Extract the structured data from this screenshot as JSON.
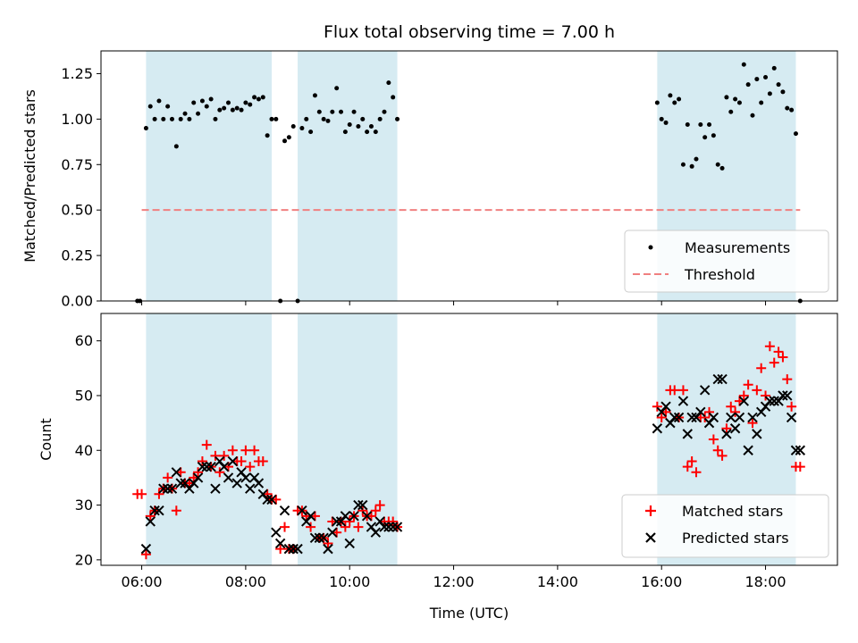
{
  "chart_data": [
    {
      "type": "scatter",
      "title": "Flux total observing time = 7.00 h",
      "xlabel": "",
      "ylabel": "Matched/Predicted stars",
      "xlim": [
        "05:13",
        "19:23"
      ],
      "ylim": [
        0,
        1.375
      ],
      "y_ticks": [
        0.0,
        0.25,
        0.5,
        0.75,
        1.0,
        1.25
      ],
      "y_tick_labels": [
        "0.00",
        "0.25",
        "0.50",
        "0.75",
        "1.00",
        "1.25"
      ],
      "x_ticks": [
        "06:00",
        "08:00",
        "10:00",
        "12:00",
        "14:00",
        "16:00",
        "18:00"
      ],
      "show_x_tick_labels": false,
      "grid": false,
      "legend_position": "lower-right",
      "observing_windows": [
        [
          "06:05",
          "08:30"
        ],
        [
          "09:00",
          "10:55"
        ],
        [
          "15:55",
          "18:35"
        ]
      ],
      "threshold": {
        "name": "Threshold",
        "value": 0.5,
        "x_range": [
          "06:00",
          "18:40"
        ],
        "color": "#f08080",
        "style": "dashed"
      },
      "series": [
        {
          "name": "Measurements",
          "marker": "dot",
          "color": "#000000",
          "x": [
            "05:55",
            "05:58",
            "06:05",
            "06:10",
            "06:15",
            "06:20",
            "06:25",
            "06:30",
            "06:35",
            "06:40",
            "06:45",
            "06:50",
            "06:55",
            "07:00",
            "07:05",
            "07:10",
            "07:15",
            "07:20",
            "07:25",
            "07:30",
            "07:35",
            "07:40",
            "07:45",
            "07:50",
            "07:55",
            "08:00",
            "08:05",
            "08:10",
            "08:15",
            "08:20",
            "08:25",
            "08:30",
            "08:35",
            "08:40",
            "08:45",
            "08:50",
            "08:55",
            "09:00",
            "09:05",
            "09:10",
            "09:15",
            "09:20",
            "09:25",
            "09:30",
            "09:35",
            "09:40",
            "09:45",
            "09:50",
            "09:55",
            "10:00",
            "10:05",
            "10:10",
            "10:15",
            "10:20",
            "10:25",
            "10:30",
            "10:35",
            "10:40",
            "10:45",
            "10:50",
            "10:55",
            "15:55",
            "16:00",
            "16:05",
            "16:10",
            "16:15",
            "16:20",
            "16:25",
            "16:30",
            "16:35",
            "16:40",
            "16:45",
            "16:50",
            "16:55",
            "17:00",
            "17:05",
            "17:10",
            "17:15",
            "17:20",
            "17:25",
            "17:30",
            "17:35",
            "17:40",
            "17:45",
            "17:50",
            "17:55",
            "18:00",
            "18:05",
            "18:10",
            "18:15",
            "18:20",
            "18:25",
            "18:30",
            "18:35",
            "18:40"
          ],
          "y": [
            0.0,
            0.0,
            0.95,
            1.07,
            1.0,
            1.1,
            1.0,
            1.07,
            1.0,
            0.85,
            1.0,
            1.03,
            1.0,
            1.09,
            1.03,
            1.1,
            1.07,
            1.11,
            1.0,
            1.05,
            1.06,
            1.09,
            1.05,
            1.06,
            1.05,
            1.09,
            1.08,
            1.12,
            1.11,
            1.12,
            0.91,
            1.0,
            1.0,
            0.0,
            0.88,
            0.9,
            0.96,
            0.0,
            0.95,
            1.0,
            0.93,
            1.13,
            1.04,
            1.0,
            0.99,
            1.04,
            1.17,
            1.04,
            0.93,
            0.97,
            1.04,
            0.96,
            1.0,
            0.93,
            0.96,
            0.93,
            1.0,
            1.04,
            1.2,
            1.12,
            1.0,
            1.09,
            1.0,
            0.98,
            1.13,
            1.09,
            1.11,
            0.75,
            0.97,
            0.74,
            0.78,
            0.97,
            0.9,
            0.97,
            0.91,
            0.75,
            0.73,
            1.12,
            1.04,
            1.11,
            1.09,
            1.3,
            1.19,
            1.02,
            1.22,
            1.09,
            1.23,
            1.14,
            1.28,
            1.19,
            1.15,
            1.06,
            1.05,
            0.92,
            0.0
          ]
        }
      ]
    },
    {
      "type": "scatter",
      "title": "",
      "xlabel": "Time (UTC)",
      "ylabel": "Count",
      "xlim": [
        "05:13",
        "19:23"
      ],
      "ylim": [
        19,
        65
      ],
      "y_ticks": [
        20,
        30,
        40,
        50,
        60
      ],
      "y_tick_labels": [
        "20",
        "30",
        "40",
        "50",
        "60"
      ],
      "x_ticks": [
        "06:00",
        "08:00",
        "10:00",
        "12:00",
        "14:00",
        "16:00",
        "18:00"
      ],
      "x_tick_labels": [
        "06:00",
        "08:00",
        "10:00",
        "12:00",
        "14:00",
        "16:00",
        "18:00"
      ],
      "show_x_tick_labels": true,
      "grid": false,
      "legend_position": "lower-right",
      "observing_windows": [
        [
          "06:05",
          "08:30"
        ],
        [
          "09:00",
          "10:55"
        ],
        [
          "15:55",
          "18:35"
        ]
      ],
      "series": [
        {
          "name": "Matched stars",
          "marker": "plus",
          "color": "#ff0000",
          "x": [
            "05:55",
            "06:00",
            "06:05",
            "06:10",
            "06:15",
            "06:20",
            "06:25",
            "06:30",
            "06:35",
            "06:40",
            "06:45",
            "06:50",
            "06:55",
            "07:00",
            "07:05",
            "07:10",
            "07:15",
            "07:20",
            "07:25",
            "07:30",
            "07:35",
            "07:40",
            "07:45",
            "07:50",
            "07:55",
            "08:00",
            "08:05",
            "08:10",
            "08:15",
            "08:20",
            "08:25",
            "08:30",
            "08:35",
            "08:40",
            "08:45",
            "08:50",
            "08:55",
            "09:00",
            "09:05",
            "09:10",
            "09:15",
            "09:20",
            "09:25",
            "09:30",
            "09:35",
            "09:40",
            "09:45",
            "09:50",
            "09:55",
            "10:00",
            "10:05",
            "10:10",
            "10:15",
            "10:20",
            "10:25",
            "10:30",
            "10:35",
            "10:40",
            "10:45",
            "10:50",
            "10:55",
            "15:55",
            "16:00",
            "16:05",
            "16:10",
            "16:15",
            "16:20",
            "16:25",
            "16:30",
            "16:35",
            "16:40",
            "16:45",
            "16:50",
            "16:55",
            "17:00",
            "17:05",
            "17:10",
            "17:15",
            "17:20",
            "17:25",
            "17:30",
            "17:35",
            "17:40",
            "17:45",
            "17:50",
            "17:55",
            "18:00",
            "18:05",
            "18:10",
            "18:15",
            "18:20",
            "18:25",
            "18:30",
            "18:35",
            "18:40"
          ],
          "y": [
            32,
            32,
            21,
            28,
            29,
            32,
            33,
            35,
            33,
            29,
            36,
            34,
            34,
            35,
            36,
            38,
            41,
            37,
            39,
            36,
            39,
            37,
            40,
            38,
            38,
            40,
            37,
            40,
            38,
            38,
            32,
            31,
            31,
            22,
            26,
            22,
            22,
            29,
            29,
            28,
            26,
            28,
            24,
            24,
            23,
            27,
            25,
            27,
            26,
            27,
            28,
            26,
            29,
            28,
            28,
            29,
            30,
            27,
            27,
            27,
            26,
            48,
            46,
            47,
            51,
            51,
            46,
            51,
            37,
            38,
            36,
            46,
            46,
            47,
            42,
            40,
            39,
            44,
            48,
            47,
            49,
            50,
            52,
            45,
            51,
            55,
            50,
            59,
            56,
            58,
            57,
            53,
            48,
            37,
            37
          ]
        },
        {
          "name": "Predicted stars",
          "marker": "x",
          "color": "#000000",
          "x": [
            "06:05",
            "06:10",
            "06:15",
            "06:20",
            "06:25",
            "06:30",
            "06:35",
            "06:40",
            "06:45",
            "06:50",
            "06:55",
            "07:00",
            "07:05",
            "07:10",
            "07:15",
            "07:20",
            "07:25",
            "07:30",
            "07:35",
            "07:40",
            "07:45",
            "07:50",
            "07:55",
            "08:00",
            "08:05",
            "08:10",
            "08:15",
            "08:20",
            "08:25",
            "08:30",
            "08:35",
            "08:40",
            "08:45",
            "08:50",
            "08:55",
            "09:00",
            "09:05",
            "09:10",
            "09:15",
            "09:20",
            "09:25",
            "09:30",
            "09:35",
            "09:40",
            "09:45",
            "09:50",
            "09:55",
            "10:00",
            "10:05",
            "10:10",
            "10:15",
            "10:20",
            "10:25",
            "10:30",
            "10:35",
            "10:40",
            "10:45",
            "10:50",
            "10:55",
            "15:55",
            "16:00",
            "16:05",
            "16:10",
            "16:15",
            "16:20",
            "16:25",
            "16:30",
            "16:35",
            "16:40",
            "16:45",
            "16:50",
            "16:55",
            "17:00",
            "17:05",
            "17:10",
            "17:15",
            "17:20",
            "17:25",
            "17:30",
            "17:35",
            "17:40",
            "17:45",
            "17:50",
            "17:55",
            "18:00",
            "18:05",
            "18:10",
            "18:15",
            "18:20",
            "18:25",
            "18:30",
            "18:35",
            "18:40"
          ],
          "y": [
            22,
            27,
            29,
            29,
            33,
            33,
            33,
            36,
            34,
            34,
            33,
            34,
            35,
            37,
            37,
            37,
            33,
            38,
            37,
            35,
            38,
            34,
            36,
            35,
            33,
            35,
            34,
            32,
            31,
            31,
            25,
            23,
            29,
            22,
            22,
            22,
            29,
            27,
            28,
            24,
            24,
            24,
            22,
            25,
            27,
            27,
            28,
            23,
            28,
            30,
            30,
            28,
            26,
            25,
            27,
            26,
            26,
            26,
            26,
            44,
            47,
            48,
            45,
            46,
            46,
            49,
            43,
            46,
            46,
            47,
            51,
            45,
            46,
            53,
            53,
            43,
            46,
            44,
            46,
            49,
            40,
            46,
            43,
            47,
            48,
            49,
            49,
            49,
            50,
            50,
            46,
            40,
            40
          ]
        }
      ]
    }
  ]
}
